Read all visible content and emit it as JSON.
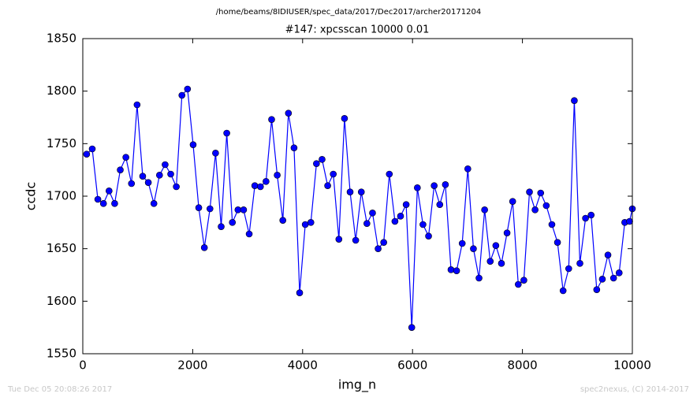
{
  "chart_data": {
    "type": "line",
    "title": "/home/beams/8IDIUSER/spec_data/2017/Dec2017/archer20171204",
    "subtitle": "#147: xpcsscan 10000 0.01",
    "x_label": "img_n",
    "y_label": "ccdc",
    "footer_left": "Tue Dec 05 20:08:26 2017",
    "footer_right": "spec2nexus, (C) 2014-2017",
    "color": "#0000ff",
    "x": [
      70,
      172,
      274,
      376,
      478,
      580,
      682,
      784,
      886,
      988,
      1090,
      1192,
      1294,
      1396,
      1498,
      1600,
      1702,
      1804,
      1906,
      2008,
      2110,
      2212,
      2314,
      2416,
      2518,
      2620,
      2722,
      2824,
      2926,
      3028,
      3130,
      3232,
      3334,
      3436,
      3538,
      3640,
      3742,
      3844,
      3946,
      4048,
      4150,
      4252,
      4354,
      4456,
      4558,
      4660,
      4762,
      4864,
      4966,
      5068,
      5170,
      5272,
      5374,
      5476,
      5578,
      5680,
      5782,
      5884,
      5986,
      6088,
      6190,
      6292,
      6394,
      6496,
      6598,
      6700,
      6802,
      6904,
      7006,
      7108,
      7210,
      7312,
      7414,
      7516,
      7618,
      7720,
      7822,
      7924,
      8026,
      8128,
      8230,
      8332,
      8434,
      8536,
      8638,
      8740,
      8842,
      8944,
      9046,
      9148,
      9250,
      9352,
      9454,
      9556,
      9658,
      9760,
      9862,
      9950,
      10000
    ],
    "values": [
      1740,
      1745,
      1697,
      1693,
      1705,
      1693,
      1725,
      1737,
      1712,
      1787,
      1719,
      1713,
      1693,
      1720,
      1730,
      1721,
      1709,
      1796,
      1802,
      1749,
      1689,
      1651,
      1688,
      1741,
      1671,
      1760,
      1675,
      1687,
      1687,
      1664,
      1710,
      1709,
      1714,
      1773,
      1720,
      1677,
      1779,
      1746,
      1608,
      1673,
      1675,
      1731,
      1735,
      1710,
      1721,
      1659,
      1774,
      1704,
      1658,
      1704,
      1674,
      1684,
      1650,
      1656,
      1721,
      1676,
      1681,
      1692,
      1575,
      1708,
      1673,
      1662,
      1710,
      1692,
      1711,
      1630,
      1629,
      1655,
      1726,
      1650,
      1622,
      1687,
      1638,
      1653,
      1636,
      1665,
      1695,
      1616,
      1620,
      1704,
      1687,
      1703,
      1691,
      1673,
      1656,
      1610,
      1631,
      1791,
      1636,
      1679,
      1682,
      1611,
      1621,
      1644,
      1622,
      1627,
      1675,
      1676,
      1688
    ],
    "xlim": [
      0,
      10000
    ],
    "xticks": [
      0,
      2000,
      4000,
      6000,
      8000,
      10000
    ],
    "ylim": [
      1550,
      1850
    ],
    "yticks": [
      1550,
      1600,
      1650,
      1700,
      1750,
      1800,
      1850
    ],
    "grid": false
  }
}
